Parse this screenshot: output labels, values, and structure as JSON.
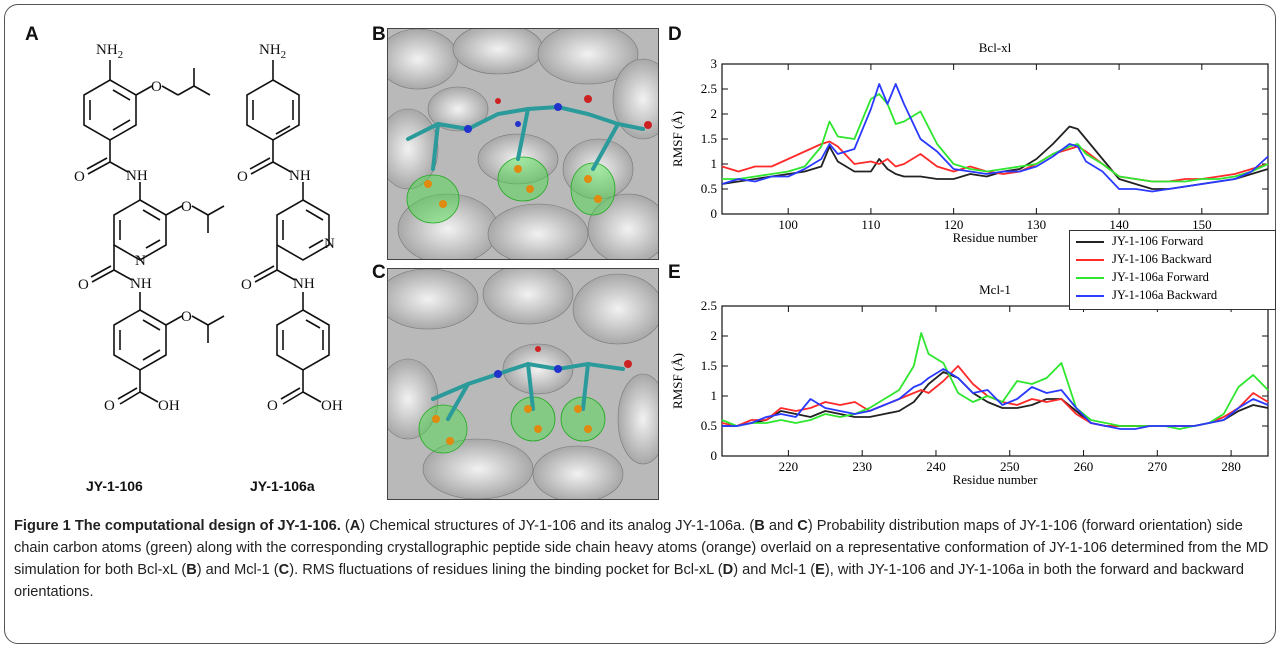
{
  "panel_labels": {
    "a": "A",
    "b": "B",
    "c": "C",
    "d": "D",
    "e": "E"
  },
  "compounds": [
    {
      "name": "JY-1-106",
      "groups": {
        "amine": "NH",
        "amine_sub": "2",
        "amide1": "NH",
        "amide2": "NH",
        "pyridine_n": "N",
        "oxygen": "O",
        "acid": "OH"
      }
    },
    {
      "name": "JY-1-106a",
      "groups": {
        "amine": "NH",
        "amine_sub": "2",
        "amide1": "NH",
        "amide2": "NH",
        "pyridine_n": "N",
        "oxygen": "O",
        "acid": "OH"
      }
    }
  ],
  "snapshots": {
    "b": {
      "description_colors": {
        "surface": "#c8c8c8",
        "ligand": "#2a9a9a",
        "nitrogen": "#2233cc",
        "oxygen": "#cc2222",
        "orange_atoms": "#e08a10",
        "green_mesh": "#44dd44"
      }
    },
    "c": {
      "description_colors": {
        "surface": "#c8c8c8",
        "ligand": "#2a9a9a",
        "nitrogen": "#2233cc",
        "oxygen": "#cc2222",
        "orange_atoms": "#e08a10",
        "green_mesh": "#44dd44"
      }
    }
  },
  "legend": {
    "entries": [
      {
        "name": "JY-1-106 Forward",
        "color": "#222222"
      },
      {
        "name": "JY-1-106 Backward",
        "color": "#ff2a2a"
      },
      {
        "name": "JY-1-106a Forward",
        "color": "#2ee62e"
      },
      {
        "name": "JY-1-106a Backward",
        "color": "#2a3aff"
      }
    ]
  },
  "chart_data": [
    {
      "type": "line",
      "title": "Bcl-xl",
      "xlabel": "Residue number",
      "ylabel": "RMSF (Å)",
      "xlim": [
        92,
        158
      ],
      "ylim": [
        0,
        3
      ],
      "xticks": [
        100,
        110,
        120,
        130,
        140,
        150
      ],
      "yticks": [
        0,
        0.5,
        1,
        1.5,
        2,
        2.5,
        3
      ],
      "x": [
        92,
        94,
        96,
        98,
        100,
        102,
        104,
        105,
        106,
        108,
        110,
        111,
        112,
        113,
        114,
        116,
        118,
        120,
        122,
        124,
        126,
        128,
        130,
        132,
        134,
        135,
        136,
        138,
        140,
        142,
        144,
        146,
        148,
        150,
        152,
        154,
        156,
        158
      ],
      "series": [
        {
          "name": "JY-1-106 Forward",
          "color": "#222222",
          "values": [
            0.6,
            0.65,
            0.7,
            0.75,
            0.8,
            0.85,
            0.95,
            1.35,
            1.05,
            0.85,
            0.85,
            1.1,
            0.9,
            0.8,
            0.75,
            0.75,
            0.7,
            0.7,
            0.8,
            0.75,
            0.85,
            0.9,
            1.1,
            1.4,
            1.75,
            1.7,
            1.5,
            1.1,
            0.7,
            0.6,
            0.5,
            0.5,
            0.55,
            0.6,
            0.65,
            0.7,
            0.8,
            0.9
          ]
        },
        {
          "name": "JY-1-106 Backward",
          "color": "#ff2a2a",
          "values": [
            0.95,
            0.85,
            0.95,
            0.95,
            1.1,
            1.25,
            1.4,
            1.45,
            1.35,
            1.0,
            1.05,
            1.0,
            1.1,
            0.95,
            1.0,
            1.2,
            0.95,
            0.85,
            0.95,
            0.85,
            0.8,
            0.85,
            1.0,
            1.2,
            1.3,
            1.35,
            1.25,
            1.0,
            0.75,
            0.7,
            0.65,
            0.65,
            0.7,
            0.7,
            0.75,
            0.8,
            0.9,
            1.0
          ]
        },
        {
          "name": "JY-1-106a Forward",
          "color": "#2ee62e",
          "values": [
            0.7,
            0.7,
            0.75,
            0.8,
            0.85,
            0.95,
            1.35,
            1.85,
            1.55,
            1.5,
            2.3,
            2.4,
            2.2,
            1.8,
            1.85,
            2.05,
            1.4,
            1.0,
            0.9,
            0.85,
            0.9,
            0.95,
            1.0,
            1.2,
            1.35,
            1.4,
            1.2,
            1.0,
            0.75,
            0.7,
            0.65,
            0.65,
            0.65,
            0.7,
            0.7,
            0.75,
            0.85,
            1.0
          ]
        },
        {
          "name": "JY-1-106a Backward",
          "color": "#2a3aff",
          "values": [
            0.6,
            0.7,
            0.65,
            0.75,
            0.75,
            0.9,
            1.1,
            1.4,
            1.2,
            1.3,
            2.1,
            2.6,
            2.2,
            2.6,
            2.2,
            1.5,
            1.25,
            0.9,
            0.85,
            0.8,
            0.85,
            0.85,
            0.95,
            1.15,
            1.4,
            1.35,
            1.05,
            0.85,
            0.5,
            0.5,
            0.45,
            0.5,
            0.55,
            0.6,
            0.65,
            0.7,
            0.85,
            1.15
          ]
        }
      ]
    },
    {
      "type": "line",
      "title": "Mcl-1",
      "xlabel": "Residue number",
      "ylabel": "RMSF (Å)",
      "xlim": [
        211,
        285
      ],
      "ylim": [
        0,
        2.5
      ],
      "xticks": [
        220,
        230,
        240,
        250,
        260,
        270,
        280
      ],
      "yticks": [
        0,
        0.5,
        1,
        1.5,
        2,
        2.5
      ],
      "x": [
        211,
        213,
        215,
        217,
        219,
        221,
        223,
        225,
        227,
        229,
        231,
        233,
        235,
        237,
        238,
        239,
        241,
        243,
        245,
        247,
        249,
        251,
        253,
        255,
        257,
        259,
        261,
        263,
        265,
        267,
        269,
        271,
        273,
        275,
        277,
        279,
        281,
        283,
        285
      ],
      "series": [
        {
          "name": "JY-1-106 Forward",
          "color": "#222222",
          "values": [
            0.5,
            0.5,
            0.55,
            0.6,
            0.75,
            0.7,
            0.65,
            0.75,
            0.7,
            0.65,
            0.65,
            0.7,
            0.75,
            0.9,
            1.05,
            1.2,
            1.4,
            1.3,
            1.05,
            0.9,
            0.8,
            0.8,
            0.85,
            0.95,
            0.95,
            0.75,
            0.55,
            0.5,
            0.5,
            0.5,
            0.5,
            0.5,
            0.5,
            0.5,
            0.55,
            0.6,
            0.75,
            0.85,
            0.8
          ]
        },
        {
          "name": "JY-1-106 Backward",
          "color": "#ff2a2a",
          "values": [
            0.55,
            0.5,
            0.6,
            0.6,
            0.8,
            0.75,
            0.8,
            0.9,
            0.85,
            0.9,
            0.75,
            0.85,
            0.95,
            1.05,
            1.1,
            1.05,
            1.25,
            1.5,
            1.2,
            1.0,
            0.9,
            0.85,
            0.95,
            0.9,
            0.95,
            0.7,
            0.55,
            0.5,
            0.5,
            0.5,
            0.5,
            0.5,
            0.5,
            0.5,
            0.55,
            0.65,
            0.8,
            1.05,
            0.9
          ]
        },
        {
          "name": "JY-1-106a Forward",
          "color": "#2ee62e",
          "values": [
            0.6,
            0.5,
            0.55,
            0.55,
            0.6,
            0.55,
            0.6,
            0.7,
            0.65,
            0.7,
            0.8,
            0.95,
            1.1,
            1.5,
            2.05,
            1.7,
            1.55,
            1.05,
            0.9,
            1.0,
            0.9,
            1.25,
            1.2,
            1.3,
            1.55,
            0.8,
            0.6,
            0.55,
            0.5,
            0.5,
            0.5,
            0.5,
            0.45,
            0.5,
            0.55,
            0.7,
            1.15,
            1.35,
            1.1
          ]
        },
        {
          "name": "JY-1-106a Backward",
          "color": "#2a3aff",
          "values": [
            0.5,
            0.5,
            0.55,
            0.65,
            0.7,
            0.65,
            0.95,
            0.8,
            0.75,
            0.7,
            0.75,
            0.85,
            0.95,
            1.15,
            1.2,
            1.3,
            1.45,
            1.3,
            1.05,
            1.1,
            0.85,
            0.95,
            1.15,
            1.05,
            1.1,
            0.8,
            0.55,
            0.5,
            0.45,
            0.45,
            0.5,
            0.5,
            0.5,
            0.5,
            0.55,
            0.6,
            0.8,
            0.95,
            0.85
          ]
        }
      ]
    }
  ],
  "caption": {
    "lead": "Figure 1 The computational design of JY-1-106.",
    "parts": [
      " (",
      "A",
      ") Chemical structures of JY-1-106 and its analog JY-1-106a. (",
      "B",
      " and ",
      "C",
      ") Probability distribution maps of JY-1-106 (forward orientation) side chain carbon atoms (green) along with the corresponding crystallographic peptide side chain heavy atoms (orange) overlaid on a representative conformation of JY-1-106 determined from the MD simulation for both Bcl-xL (",
      "B",
      ") and Mcl-1 (",
      "C",
      "). RMS fluctuations of residues lining the binding pocket for Bcl-xL (",
      "D",
      ") and Mcl-1 (",
      "E",
      "), with JY-1-106 and JY-1-106a in both the forward and backward orientations."
    ]
  }
}
